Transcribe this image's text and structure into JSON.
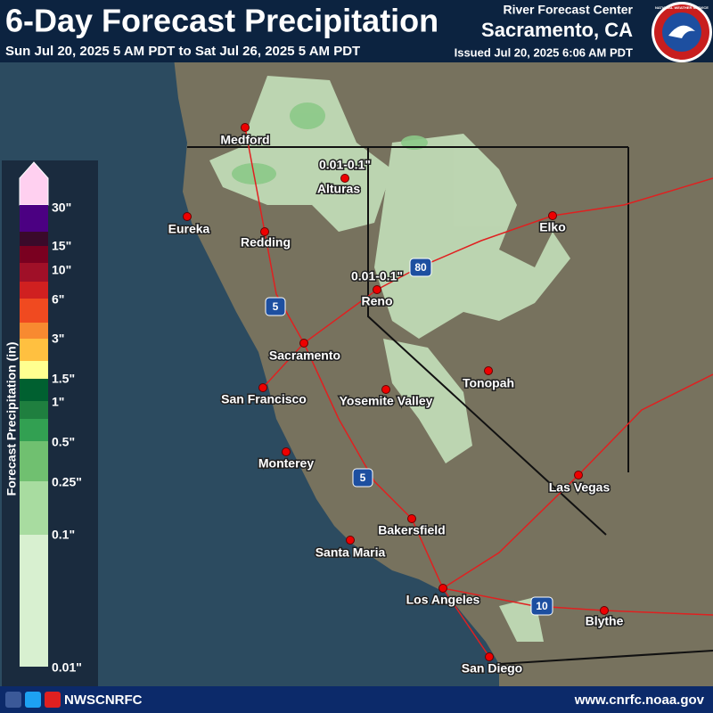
{
  "header": {
    "title": "6-Day Forecast Precipitation",
    "subtitle": "Sun Jul 20, 2025 5 AM PDT to Sat Jul 26, 2025 5 AM PDT",
    "center": "River Forecast Center",
    "location": "Sacramento, CA",
    "issued": "Issued Jul 20, 2025 6:06 AM PDT",
    "logo": "NATIONAL WEATHER SERVICE"
  },
  "legend": {
    "title": "Forecast Precipitation (in)",
    "labels": [
      "30\"",
      "15\"",
      "10\"",
      "6\"",
      "3\"",
      "1.5\"",
      "1\"",
      "0.5\"",
      "0.25\"",
      "0.1\"",
      "0.01\""
    ]
  },
  "map": {
    "cities": [
      "Medford",
      "Alturas",
      "Eureka",
      "Redding",
      "Elko",
      "Reno",
      "Sacramento",
      "San Francisco",
      "Yosemite Valley",
      "Tonopah",
      "Monterey",
      "Las Vegas",
      "Bakersfield",
      "Santa Maria",
      "Los Angeles",
      "Blythe",
      "San Diego"
    ],
    "annotations": [
      "0.01-0.1\"",
      "0.01-0.1\""
    ],
    "highways": [
      "5",
      "80",
      "5",
      "10"
    ]
  },
  "footer": {
    "handle": "NWSCNRFC",
    "url": "www.cnrfc.noaa.gov"
  }
}
